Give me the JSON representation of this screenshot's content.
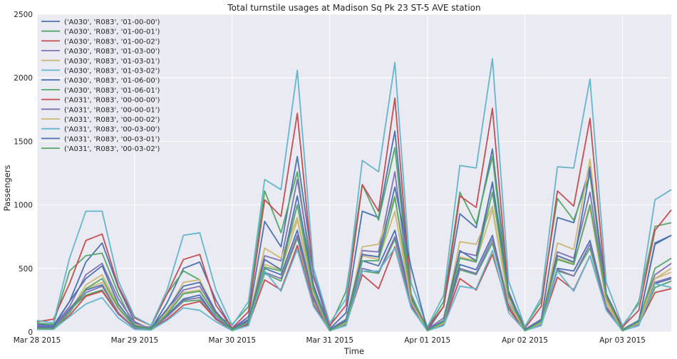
{
  "chart_data": {
    "type": "line",
    "title": "Total turnstile usages at Madison Sq Pk 23 ST-5 AVE station",
    "xlabel": "Time",
    "ylabel": "Passengers",
    "ylim": [
      0,
      2500
    ],
    "yticks": [
      0,
      500,
      1000,
      1500,
      2000,
      2500
    ],
    "xlim": [
      0,
      6.5
    ],
    "xticks": [
      0,
      1,
      2,
      3,
      4,
      5,
      6
    ],
    "xtick_labels": [
      "Mar 28 2015",
      "Mar 29 2015",
      "Mar 30 2015",
      "Mar 31 2015",
      "Apr 01 2015",
      "Apr 02 2015",
      "Apr 03 2015"
    ],
    "x_unit": "days from Mar 28 2015 00:00",
    "grid": true,
    "legend_position": "top-left",
    "x": [
      0,
      0.167,
      0.333,
      0.5,
      0.667,
      0.833,
      1,
      1.167,
      1.333,
      1.5,
      1.667,
      1.833,
      2,
      2.167,
      2.333,
      2.5,
      2.667,
      2.833,
      3,
      3.167,
      3.333,
      3.5,
      3.667,
      3.833,
      4,
      4.167,
      4.333,
      4.5,
      4.667,
      4.833,
      5,
      5.167,
      5.333,
      5.5,
      5.667,
      5.833,
      6,
      6.167,
      6.333,
      6.5
    ],
    "series": [
      {
        "name": "('A030', 'R083', '01-00-00')",
        "color": "#4c72b0",
        "values": [
          60,
          50,
          240,
          550,
          700,
          350,
          80,
          20,
          230,
          500,
          550,
          250,
          25,
          120,
          870,
          670,
          1380,
          500,
          25,
          150,
          950,
          900,
          1580,
          280,
          10,
          200,
          930,
          820,
          1440,
          310,
          15,
          100,
          900,
          860,
          1300,
          300,
          20,
          80,
          700,
          760
        ]
      },
      {
        "name": "('A030', 'R083', '01-00-01')",
        "color": "#55a868",
        "values": [
          70,
          60,
          480,
          600,
          620,
          300,
          40,
          40,
          300,
          480,
          410,
          130,
          60,
          200,
          1110,
          780,
          1260,
          350,
          40,
          320,
          1160,
          880,
          1450,
          260,
          30,
          240,
          1100,
          850,
          1380,
          290,
          45,
          240,
          1050,
          880,
          1240,
          280,
          30,
          240,
          830,
          860
        ]
      },
      {
        "name": "('A030', 'R083', '01-00-02')",
        "color": "#c44e52",
        "values": [
          80,
          100,
          380,
          720,
          770,
          360,
          110,
          50,
          300,
          570,
          610,
          210,
          30,
          160,
          1040,
          910,
          1720,
          430,
          50,
          210,
          1160,
          950,
          1840,
          290,
          30,
          200,
          1070,
          980,
          1760,
          300,
          30,
          200,
          1110,
          990,
          1680,
          300,
          40,
          170,
          800,
          960
        ]
      },
      {
        "name": "('A030', 'R083', '01-03-00')",
        "color": "#8172b2",
        "values": [
          50,
          40,
          200,
          450,
          540,
          260,
          70,
          30,
          170,
          330,
          360,
          150,
          20,
          100,
          600,
          560,
          1200,
          450,
          20,
          100,
          640,
          630,
          1260,
          250,
          20,
          110,
          630,
          600,
          1170,
          240,
          20,
          100,
          630,
          580,
          1100,
          260,
          20,
          90,
          450,
          540
        ]
      },
      {
        "name": "('A030', 'R083', '01-03-01')",
        "color": "#ccb974",
        "values": [
          40,
          40,
          160,
          370,
          450,
          210,
          60,
          25,
          160,
          390,
          410,
          160,
          15,
          90,
          660,
          580,
          900,
          330,
          15,
          80,
          670,
          690,
          1070,
          230,
          15,
          80,
          710,
          690,
          990,
          230,
          15,
          80,
          700,
          650,
          1360,
          250,
          20,
          80,
          420,
          500
        ]
      },
      {
        "name": "('A030', 'R083', '01-03-02')",
        "color": "#64b5cd",
        "values": [
          90,
          70,
          580,
          950,
          950,
          400,
          120,
          50,
          330,
          760,
          780,
          330,
          50,
          240,
          1200,
          1120,
          2060,
          500,
          70,
          260,
          1350,
          1260,
          2120,
          390,
          40,
          290,
          1310,
          1290,
          2150,
          400,
          40,
          270,
          1300,
          1290,
          1990,
          390,
          50,
          220,
          1040,
          1120
        ]
      },
      {
        "name": "('A030', 'R083', '01-06-00')",
        "color": "#4c72b0",
        "values": [
          30,
          30,
          180,
          330,
          370,
          150,
          30,
          20,
          130,
          260,
          290,
          110,
          15,
          70,
          500,
          450,
          800,
          280,
          10,
          60,
          560,
          520,
          800,
          250,
          10,
          60,
          530,
          490,
          760,
          210,
          10,
          60,
          500,
          480,
          720,
          200,
          10,
          60,
          380,
          420
        ]
      },
      {
        "name": "('A030', 'R083', '01-06-01')",
        "color": "#55a868",
        "values": [
          30,
          30,
          170,
          290,
          330,
          140,
          30,
          20,
          120,
          240,
          250,
          100,
          15,
          70,
          460,
          400,
          740,
          250,
          10,
          60,
          480,
          460,
          730,
          220,
          10,
          60,
          490,
          450,
          700,
          200,
          10,
          60,
          480,
          440,
          660,
          190,
          10,
          60,
          350,
          400
        ]
      },
      {
        "name": "('A031', 'R083', '00-00-00')",
        "color": "#c44e52",
        "values": [
          30,
          30,
          130,
          280,
          320,
          140,
          30,
          20,
          100,
          210,
          240,
          100,
          15,
          60,
          410,
          330,
          680,
          220,
          10,
          60,
          450,
          340,
          670,
          200,
          10,
          60,
          420,
          330,
          610,
          180,
          10,
          60,
          430,
          330,
          600,
          180,
          10,
          60,
          310,
          340
        ]
      },
      {
        "name": "('A031', 'R083', '00-00-01')",
        "color": "#8172b2",
        "values": [
          30,
          30,
          170,
          310,
          360,
          150,
          30,
          20,
          120,
          250,
          270,
          110,
          15,
          70,
          470,
          420,
          760,
          260,
          10,
          60,
          500,
          470,
          750,
          220,
          10,
          60,
          500,
          460,
          730,
          210,
          10,
          60,
          490,
          440,
          690,
          200,
          10,
          60,
          390,
          430
        ]
      },
      {
        "name": "('A031', 'R083', '00-00-02')",
        "color": "#ccb974",
        "values": [
          25,
          25,
          150,
          340,
          390,
          180,
          40,
          20,
          150,
          310,
          330,
          130,
          15,
          80,
          530,
          490,
          880,
          300,
          10,
          70,
          600,
          570,
          950,
          240,
          10,
          70,
          590,
          560,
          960,
          230,
          10,
          70,
          580,
          540,
          980,
          230,
          10,
          70,
          420,
          470
        ]
      },
      {
        "name": "('A031', 'R083', '00-03-00')",
        "color": "#64b5cd",
        "values": [
          20,
          20,
          120,
          220,
          270,
          110,
          20,
          15,
          90,
          190,
          170,
          80,
          10,
          50,
          480,
          320,
          650,
          200,
          10,
          50,
          480,
          480,
          660,
          190,
          10,
          50,
          360,
          340,
          640,
          150,
          10,
          50,
          480,
          320,
          600,
          170,
          10,
          50,
          380,
          350
        ]
      },
      {
        "name": "('A031', 'R083', '00-03-01')",
        "color": "#4c72b0",
        "values": [
          40,
          40,
          240,
          420,
          520,
          220,
          50,
          25,
          180,
          360,
          390,
          160,
          20,
          90,
          570,
          490,
          1070,
          370,
          15,
          90,
          610,
          590,
          1140,
          510,
          15,
          90,
          640,
          560,
          1180,
          320,
          15,
          90,
          600,
          550,
          1270,
          300,
          15,
          90,
          690,
          760
        ]
      },
      {
        "name": "('A031', 'R083', '00-03-02')",
        "color": "#55a868",
        "values": [
          25,
          25,
          150,
          340,
          420,
          190,
          40,
          20,
          140,
          300,
          320,
          130,
          15,
          80,
          510,
          480,
          1000,
          330,
          10,
          80,
          560,
          560,
          1060,
          300,
          10,
          80,
          580,
          550,
          1100,
          280,
          10,
          80,
          570,
          530,
          1000,
          280,
          10,
          80,
          500,
          580
        ]
      }
    ]
  }
}
